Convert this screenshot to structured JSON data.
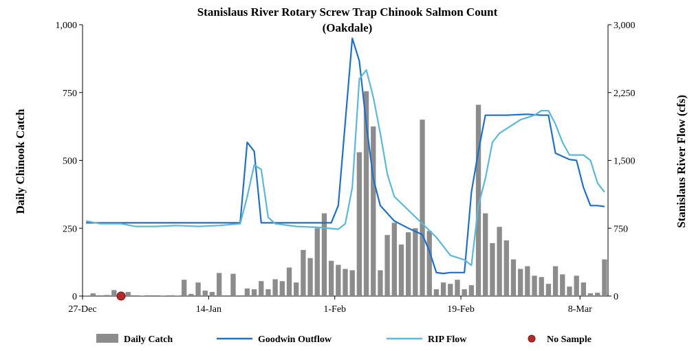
{
  "chart_data": {
    "type": "bar",
    "title": "Stanislaus River Rotary Screw Trap Chinook Salmon Count",
    "subtitle": "(Oakdale)",
    "ylabel": "Daily Chinook Catch",
    "y2label": "Stanislaus River Flow (cfs)",
    "ylim": [
      0,
      1000
    ],
    "y2lim": [
      0,
      3000
    ],
    "y_ticks": [
      "0",
      "250",
      "500",
      "750",
      "1,000"
    ],
    "y2_ticks": [
      "0",
      "750",
      "1,500",
      "2,250",
      "3,000"
    ],
    "x_start": "2021-12-27",
    "x_end": "2022-03-11",
    "x_ticks": [
      {
        "date": "2021-12-27",
        "label": "27-Dec"
      },
      {
        "date": "2022-01-14",
        "label": "14-Jan"
      },
      {
        "date": "2022-02-01",
        "label": "1-Feb"
      },
      {
        "date": "2022-02-19",
        "label": "19-Feb"
      },
      {
        "date": "2022-03-08",
        "label": "8-Mar"
      }
    ],
    "grid": false,
    "legend_position": "bottom",
    "colors": {
      "daily_catch": "#8c8c8c",
      "goodwin": "#1f6fc5",
      "rip": "#5bb8d6",
      "no_sample": "#b22a2a"
    },
    "series": [
      {
        "name": "Daily Catch",
        "type": "bar",
        "axis": "left",
        "x": [
          "2021-12-27",
          "2021-12-28",
          "2021-12-29",
          "2021-12-30",
          "2021-12-31",
          "2022-01-01",
          "2022-01-02",
          "2022-01-03",
          "2022-01-04",
          "2022-01-05",
          "2022-01-06",
          "2022-01-07",
          "2022-01-08",
          "2022-01-09",
          "2022-01-10",
          "2022-01-11",
          "2022-01-12",
          "2022-01-13",
          "2022-01-14",
          "2022-01-15",
          "2022-01-16",
          "2022-01-17",
          "2022-01-18",
          "2022-01-19",
          "2022-01-20",
          "2022-01-21",
          "2022-01-22",
          "2022-01-23",
          "2022-01-24",
          "2022-01-25",
          "2022-01-26",
          "2022-01-27",
          "2022-01-28",
          "2022-01-29",
          "2022-01-30",
          "2022-01-31",
          "2022-02-01",
          "2022-02-02",
          "2022-02-03",
          "2022-02-04",
          "2022-02-05",
          "2022-02-06",
          "2022-02-07",
          "2022-02-08",
          "2022-02-09",
          "2022-02-10",
          "2022-02-11",
          "2022-02-12",
          "2022-02-13",
          "2022-02-14",
          "2022-02-15",
          "2022-02-16",
          "2022-02-17",
          "2022-02-18",
          "2022-02-19",
          "2022-02-20",
          "2022-02-21",
          "2022-02-22",
          "2022-02-23",
          "2022-02-24",
          "2022-02-25",
          "2022-02-26",
          "2022-02-27",
          "2022-02-28",
          "2022-03-01",
          "2022-03-02",
          "2022-03-03",
          "2022-03-04",
          "2022-03-05",
          "2022-03-06",
          "2022-03-07",
          "2022-03-08",
          "2022-03-09",
          "2022-03-10",
          "2022-03-11"
        ],
        "values": [
          2,
          10,
          3,
          4,
          22,
          0,
          15,
          3,
          2,
          3,
          3,
          2,
          3,
          2,
          60,
          8,
          50,
          20,
          15,
          85,
          0,
          82,
          0,
          28,
          25,
          55,
          25,
          62,
          55,
          105,
          50,
          170,
          140,
          250,
          305,
          130,
          115,
          100,
          95,
          530,
          755,
          625,
          95,
          225,
          270,
          190,
          235,
          250,
          650,
          240,
          25,
          50,
          45,
          60,
          25,
          40,
          705,
          305,
          195,
          255,
          205,
          135,
          100,
          110,
          75,
          70,
          45,
          110,
          80,
          35,
          75,
          50,
          10,
          12,
          135
        ]
      },
      {
        "name": "Goodwin Outflow",
        "type": "line",
        "axis": "right",
        "x": [
          "2021-12-27",
          "2022-01-18",
          "2022-01-19",
          "2022-01-20",
          "2022-01-21",
          "2022-01-22",
          "2022-01-30",
          "2022-01-31",
          "2022-02-01",
          "2022-02-03",
          "2022-02-04",
          "2022-02-05",
          "2022-02-06",
          "2022-02-07",
          "2022-02-09",
          "2022-02-11",
          "2022-02-13",
          "2022-02-14",
          "2022-02-15",
          "2022-02-16",
          "2022-02-17",
          "2022-02-19",
          "2022-02-20",
          "2022-02-21",
          "2022-02-22",
          "2022-02-25",
          "2022-02-28",
          "2022-03-02",
          "2022-03-03",
          "2022-03-04",
          "2022-03-06",
          "2022-03-07",
          "2022-03-08",
          "2022-03-09",
          "2022-03-10",
          "2022-03-11"
        ],
        "values": [
          810,
          810,
          1700,
          1600,
          810,
          810,
          810,
          810,
          1000,
          2850,
          2600,
          1900,
          1300,
          1000,
          830,
          750,
          680,
          500,
          260,
          250,
          260,
          260,
          1150,
          1600,
          2000,
          2000,
          2010,
          2000,
          2000,
          1580,
          1510,
          1500,
          1200,
          1000,
          1000,
          990
        ]
      },
      {
        "name": "RIP Flow",
        "type": "line",
        "axis": "right",
        "x": [
          "2021-12-27",
          "2021-12-29",
          "2022-01-01",
          "2022-01-03",
          "2022-01-06",
          "2022-01-09",
          "2022-01-12",
          "2022-01-15",
          "2022-01-18",
          "2022-01-19",
          "2022-01-20",
          "2022-01-21",
          "2022-01-22",
          "2022-01-23",
          "2022-01-26",
          "2022-01-29",
          "2022-02-01",
          "2022-02-02",
          "2022-02-03",
          "2022-02-04",
          "2022-02-05",
          "2022-02-06",
          "2022-02-07",
          "2022-02-08",
          "2022-02-09",
          "2022-02-11",
          "2022-02-13",
          "2022-02-15",
          "2022-02-17",
          "2022-02-19",
          "2022-02-20",
          "2022-02-21",
          "2022-02-22",
          "2022-02-23",
          "2022-02-24",
          "2022-02-25",
          "2022-02-27",
          "2022-03-01",
          "2022-03-02",
          "2022-03-03",
          "2022-03-04",
          "2022-03-05",
          "2022-03-06",
          "2022-03-07",
          "2022-03-08",
          "2022-03-09",
          "2022-03-10",
          "2022-03-11"
        ],
        "values": [
          830,
          800,
          800,
          770,
          770,
          780,
          770,
          780,
          800,
          1100,
          1450,
          1400,
          870,
          800,
          770,
          760,
          740,
          800,
          1200,
          2400,
          2500,
          2200,
          1800,
          1350,
          1100,
          950,
          800,
          650,
          450,
          400,
          340,
          1000,
          1300,
          1700,
          1800,
          1850,
          1950,
          2000,
          2050,
          2050,
          1900,
          1700,
          1560,
          1560,
          1560,
          1500,
          1250,
          1150
        ]
      },
      {
        "name": "No Sample",
        "type": "scatter",
        "axis": "left",
        "x": [
          "2022-01-01"
        ],
        "values": [
          0
        ]
      }
    ]
  }
}
